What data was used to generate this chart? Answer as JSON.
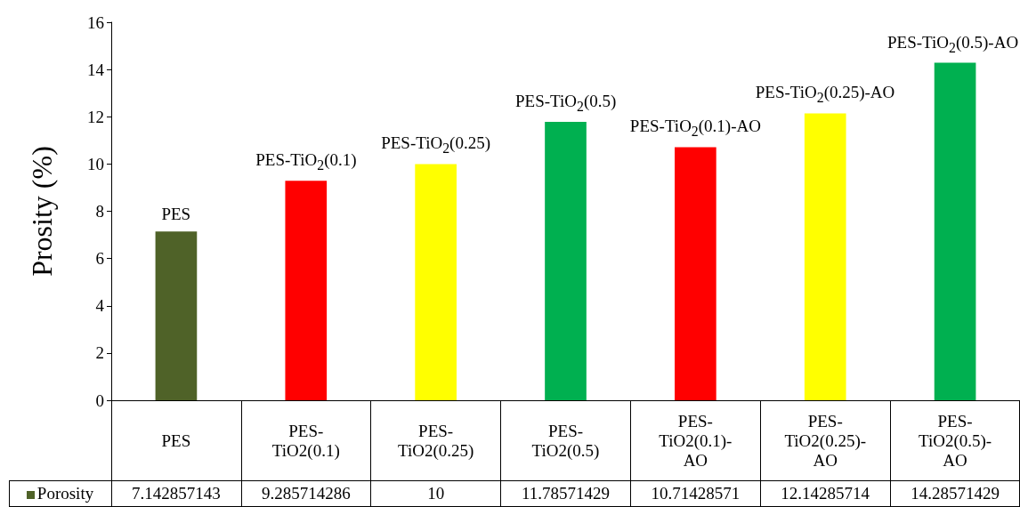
{
  "chart_data": {
    "type": "bar",
    "ylabel": "Prosity (%)",
    "categories": [
      "PES",
      "PES-TiO2(0.1)",
      "PES-TiO2(0.25)",
      "PES-TiO2(0.5)",
      "PES-TiO2(0.1)-AO",
      "PES-TiO2(0.25)-AO",
      "PES-TiO2(0.5)-AO"
    ],
    "series": [
      {
        "name": "Porosity",
        "color": "#4f6228",
        "colors": [
          "#4f6228",
          "#ff0000",
          "#ffff00",
          "#00b050",
          "#ff0000",
          "#ffff00",
          "#00b050"
        ],
        "values": [
          7.142857143,
          9.285714286,
          10,
          11.78571429,
          10.71428571,
          12.14285714,
          14.28571429
        ]
      }
    ],
    "ylim": [
      0,
      16
    ],
    "yticks": [
      0,
      2,
      4,
      6,
      8,
      10,
      12,
      14,
      16
    ],
    "data_labels": true,
    "legend": "bottom left",
    "annotations": [
      {
        "text": "PES",
        "x": "PES",
        "y": 7.142857143
      },
      {
        "text": "PES-TiO$_{2}$(0.1)",
        "x": "PES-TiO2(0.1)",
        "y": 9.285714286
      },
      {
        "text": "PES-TiO$_{2}$(0.25)",
        "x": "PES-TiO2(0.25)",
        "y": 10
      },
      {
        "text": "PES-TiO$_{2}$(0.5)",
        "x": "PES-TiO2(0.5)",
        "y": 11.78571429
      },
      {
        "text": "PES-TiO$_{2}$(0.1)-AO",
        "x": "PES-TiO2(0.1)-AO",
        "y": 10.71428571
      },
      {
        "text": "PES-TiO$_{2}$(0.25)-AO",
        "x": "PES-TiO2(0.25)-AO",
        "y": 12.14285714
      },
      {
        "text": "PES-TiO$_{2}$(0.5)-AO",
        "x": "PES-TiO2(0.5)-AO",
        "y": 14.28571429
      }
    ]
  }
}
